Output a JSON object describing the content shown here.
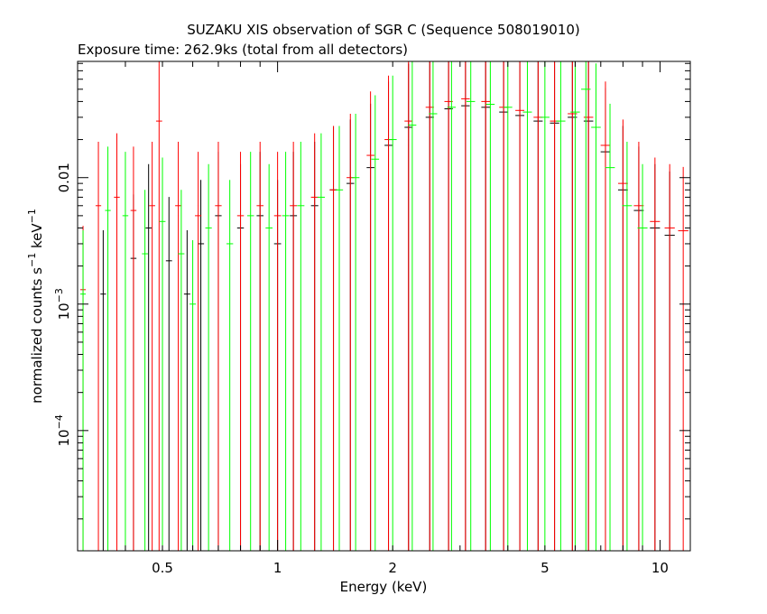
{
  "chart_data": {
    "type": "scatter",
    "title": "SUZAKU XIS observation of SGR C (Sequence 508019010)",
    "subtitle": "Exposure time: 262.9ks (total from all detectors)",
    "xlabel": "Energy (keV)",
    "ylabel": {
      "prefix": "normalized counts s",
      "exp1": "−1",
      "mid": " keV",
      "exp2": "−1"
    },
    "xscale": "log",
    "yscale": "log",
    "xlim": [
      0.3,
      12
    ],
    "ylim": [
      1.12e-05,
      0.083
    ],
    "x_ticks": [
      {
        "value": 0.5,
        "label": "0.5"
      },
      {
        "value": 1,
        "label": "1"
      },
      {
        "value": 2,
        "label": "2"
      },
      {
        "value": 5,
        "label": "5"
      },
      {
        "value": 10,
        "label": "10"
      }
    ],
    "y_ticks": [
      {
        "value": 0.0001,
        "base": "10",
        "exp": "−4"
      },
      {
        "value": 0.001,
        "base": "10",
        "exp": "−3"
      },
      {
        "value": 0.01,
        "label": "0.01"
      }
    ],
    "series": [
      {
        "color": "#000000",
        "points": [
          [
            0.35,
            0.0012
          ],
          [
            0.42,
            0.0023
          ],
          [
            0.46,
            0.004
          ],
          [
            0.52,
            0.0022
          ],
          [
            0.58,
            0.0012
          ],
          [
            0.63,
            0.003
          ],
          [
            0.7,
            0.005
          ],
          [
            0.8,
            0.004
          ],
          [
            0.9,
            0.005
          ],
          [
            1.0,
            0.003
          ],
          [
            1.1,
            0.005
          ],
          [
            1.25,
            0.006
          ],
          [
            1.4,
            0.008
          ],
          [
            1.55,
            0.009
          ],
          [
            1.75,
            0.012
          ],
          [
            1.95,
            0.018
          ],
          [
            2.2,
            0.025
          ],
          [
            2.5,
            0.03
          ],
          [
            2.8,
            0.035
          ],
          [
            3.1,
            0.037
          ],
          [
            3.5,
            0.036
          ],
          [
            3.9,
            0.033
          ],
          [
            4.3,
            0.031
          ],
          [
            4.8,
            0.028
          ],
          [
            5.3,
            0.027
          ],
          [
            5.9,
            0.03
          ],
          [
            6.5,
            0.028
          ],
          [
            7.2,
            0.016
          ],
          [
            8.0,
            0.008
          ],
          [
            8.8,
            0.0055
          ],
          [
            9.7,
            0.004
          ],
          [
            10.6,
            0.0035
          ]
        ]
      },
      {
        "color": "#ff0000",
        "points": [
          [
            0.31,
            0.0013
          ],
          [
            0.34,
            0.006
          ],
          [
            0.38,
            0.007
          ],
          [
            0.42,
            0.0055
          ],
          [
            0.47,
            0.006
          ],
          [
            0.49,
            0.028
          ],
          [
            0.55,
            0.006
          ],
          [
            0.62,
            0.005
          ],
          [
            0.7,
            0.006
          ],
          [
            0.8,
            0.005
          ],
          [
            0.9,
            0.006
          ],
          [
            1.0,
            0.005
          ],
          [
            1.1,
            0.006
          ],
          [
            1.25,
            0.007
          ],
          [
            1.4,
            0.008
          ],
          [
            1.55,
            0.01
          ],
          [
            1.75,
            0.015
          ],
          [
            1.95,
            0.02
          ],
          [
            2.2,
            0.028
          ],
          [
            2.5,
            0.036
          ],
          [
            2.8,
            0.04
          ],
          [
            3.1,
            0.042
          ],
          [
            3.5,
            0.04
          ],
          [
            3.9,
            0.036
          ],
          [
            4.3,
            0.034
          ],
          [
            4.8,
            0.03
          ],
          [
            5.3,
            0.028
          ],
          [
            5.9,
            0.032
          ],
          [
            6.5,
            0.03
          ],
          [
            7.2,
            0.018
          ],
          [
            8.0,
            0.009
          ],
          [
            8.8,
            0.006
          ],
          [
            9.7,
            0.0045
          ],
          [
            10.6,
            0.004
          ],
          [
            11.5,
            0.0038
          ]
        ]
      },
      {
        "color": "#00ff00",
        "points": [
          [
            0.31,
            0.0012
          ],
          [
            0.36,
            0.0055
          ],
          [
            0.4,
            0.005
          ],
          [
            0.45,
            0.0025
          ],
          [
            0.5,
            0.0045
          ],
          [
            0.56,
            0.0025
          ],
          [
            0.6,
            0.001
          ],
          [
            0.66,
            0.004
          ],
          [
            0.75,
            0.003
          ],
          [
            0.85,
            0.005
          ],
          [
            0.95,
            0.004
          ],
          [
            1.05,
            0.005
          ],
          [
            1.15,
            0.006
          ],
          [
            1.3,
            0.007
          ],
          [
            1.45,
            0.008
          ],
          [
            1.6,
            0.01
          ],
          [
            1.8,
            0.014
          ],
          [
            2.0,
            0.02
          ],
          [
            2.25,
            0.026
          ],
          [
            2.55,
            0.032
          ],
          [
            2.85,
            0.036
          ],
          [
            3.2,
            0.04
          ],
          [
            3.6,
            0.038
          ],
          [
            4.0,
            0.036
          ],
          [
            4.5,
            0.033
          ],
          [
            5.0,
            0.03
          ],
          [
            5.5,
            0.028
          ],
          [
            6.0,
            0.033
          ],
          [
            6.4,
            0.05
          ],
          [
            6.8,
            0.025
          ],
          [
            7.4,
            0.012
          ],
          [
            8.2,
            0.006
          ],
          [
            9.0,
            0.004
          ]
        ]
      }
    ]
  }
}
